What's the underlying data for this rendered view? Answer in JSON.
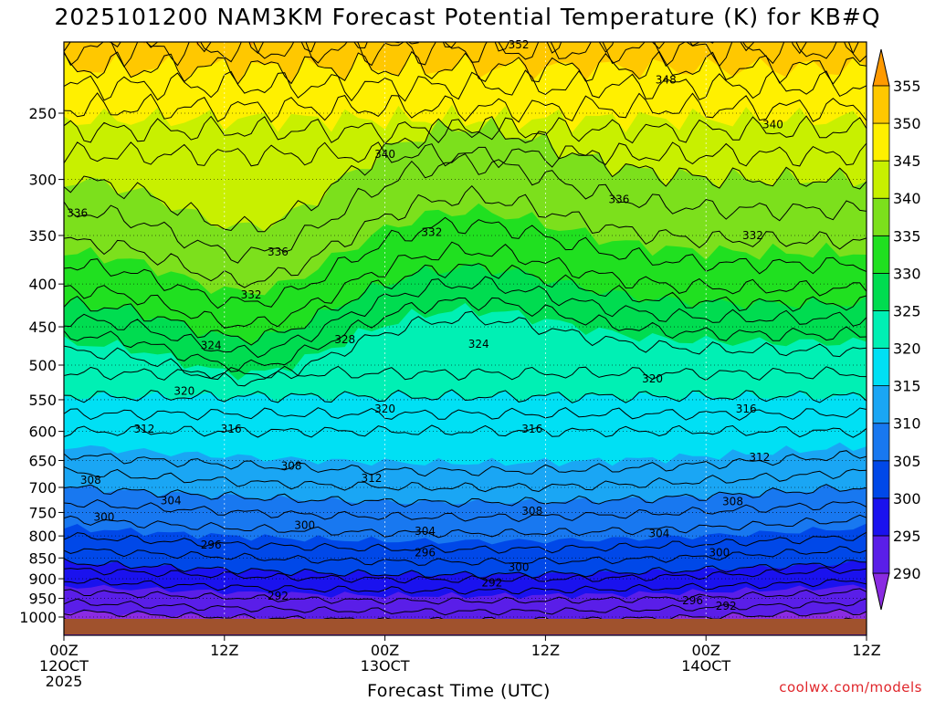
{
  "chart_data": {
    "type": "heatmap",
    "title": "2025101200 NAM3KM Forecast Potential Temperature (K) for KB#Q",
    "xlabel": "Forecast Time (UTC)",
    "ylabel": "",
    "credit": "coolwx.com/models",
    "y_ticks": [
      250,
      300,
      350,
      400,
      450,
      500,
      550,
      600,
      650,
      700,
      750,
      800,
      850,
      900,
      950,
      1000
    ],
    "y_range": [
      200,
      1000
    ],
    "x_range": [
      0,
      60
    ],
    "x_ticks": [
      {
        "hour": 0,
        "lines": [
          "00Z",
          "12OCT",
          "2025"
        ]
      },
      {
        "hour": 12,
        "lines": [
          "12Z"
        ]
      },
      {
        "hour": 24,
        "lines": [
          "00Z",
          "13OCT"
        ]
      },
      {
        "hour": 36,
        "lines": [
          "12Z"
        ]
      },
      {
        "hour": 48,
        "lines": [
          "00Z",
          "14OCT"
        ]
      },
      {
        "hour": 60,
        "lines": [
          "12Z"
        ]
      }
    ],
    "colorbar": {
      "levels": [
        290,
        295,
        300,
        305,
        310,
        315,
        320,
        325,
        330,
        335,
        340,
        345,
        350,
        355
      ],
      "colors": [
        "#8a2be2",
        "#5a1ee8",
        "#1a12ee",
        "#0048e8",
        "#1878f0",
        "#1aa6f4",
        "#00e0f4",
        "#00f0b4",
        "#00dc50",
        "#20e020",
        "#7ce01c",
        "#c8f000",
        "#fff000",
        "#ffc800",
        "#ff9a00"
      ]
    },
    "contour_labels": [
      {
        "value": "352",
        "hour": 34.0,
        "p": 207
      },
      {
        "value": "348",
        "hour": 45.0,
        "p": 228
      },
      {
        "value": "340",
        "hour": 53.0,
        "p": 258
      },
      {
        "value": "340",
        "hour": 24.0,
        "p": 280
      },
      {
        "value": "336",
        "hour": 1.0,
        "p": 329
      },
      {
        "value": "336",
        "hour": 41.5,
        "p": 317
      },
      {
        "value": "332",
        "hour": 27.5,
        "p": 347
      },
      {
        "value": "332",
        "hour": 51.5,
        "p": 350
      },
      {
        "value": "336",
        "hour": 16.0,
        "p": 366
      },
      {
        "value": "332",
        "hour": 14.0,
        "p": 412
      },
      {
        "value": "328",
        "hour": 21.0,
        "p": 466
      },
      {
        "value": "324",
        "hour": 11.0,
        "p": 474
      },
      {
        "value": "324",
        "hour": 31.0,
        "p": 472
      },
      {
        "value": "320",
        "hour": 44.0,
        "p": 519
      },
      {
        "value": "320",
        "hour": 9.0,
        "p": 537
      },
      {
        "value": "320",
        "hour": 24.0,
        "p": 564
      },
      {
        "value": "316",
        "hour": 51.0,
        "p": 564
      },
      {
        "value": "316",
        "hour": 35.0,
        "p": 596
      },
      {
        "value": "316",
        "hour": 12.5,
        "p": 596
      },
      {
        "value": "312",
        "hour": 6.0,
        "p": 596
      },
      {
        "value": "312",
        "hour": 52.0,
        "p": 644
      },
      {
        "value": "308",
        "hour": 17.0,
        "p": 660
      },
      {
        "value": "312",
        "hour": 23.0,
        "p": 683
      },
      {
        "value": "308",
        "hour": 2.0,
        "p": 686
      },
      {
        "value": "304",
        "hour": 8.0,
        "p": 726
      },
      {
        "value": "308",
        "hour": 35.0,
        "p": 747
      },
      {
        "value": "308",
        "hour": 50.0,
        "p": 728
      },
      {
        "value": "300",
        "hour": 3.0,
        "p": 760
      },
      {
        "value": "300",
        "hour": 18.0,
        "p": 777
      },
      {
        "value": "304",
        "hour": 27.0,
        "p": 790
      },
      {
        "value": "304",
        "hour": 44.5,
        "p": 795
      },
      {
        "value": "296",
        "hour": 11.0,
        "p": 820
      },
      {
        "value": "296",
        "hour": 27.0,
        "p": 838
      },
      {
        "value": "300",
        "hour": 49.0,
        "p": 838
      },
      {
        "value": "300",
        "hour": 34.0,
        "p": 872
      },
      {
        "value": "292",
        "hour": 32.0,
        "p": 910
      },
      {
        "value": "292",
        "hour": 16.0,
        "p": 944
      },
      {
        "value": "296",
        "hour": 47.0,
        "p": 956
      },
      {
        "value": "292",
        "hour": 49.5,
        "p": 970
      }
    ]
  }
}
